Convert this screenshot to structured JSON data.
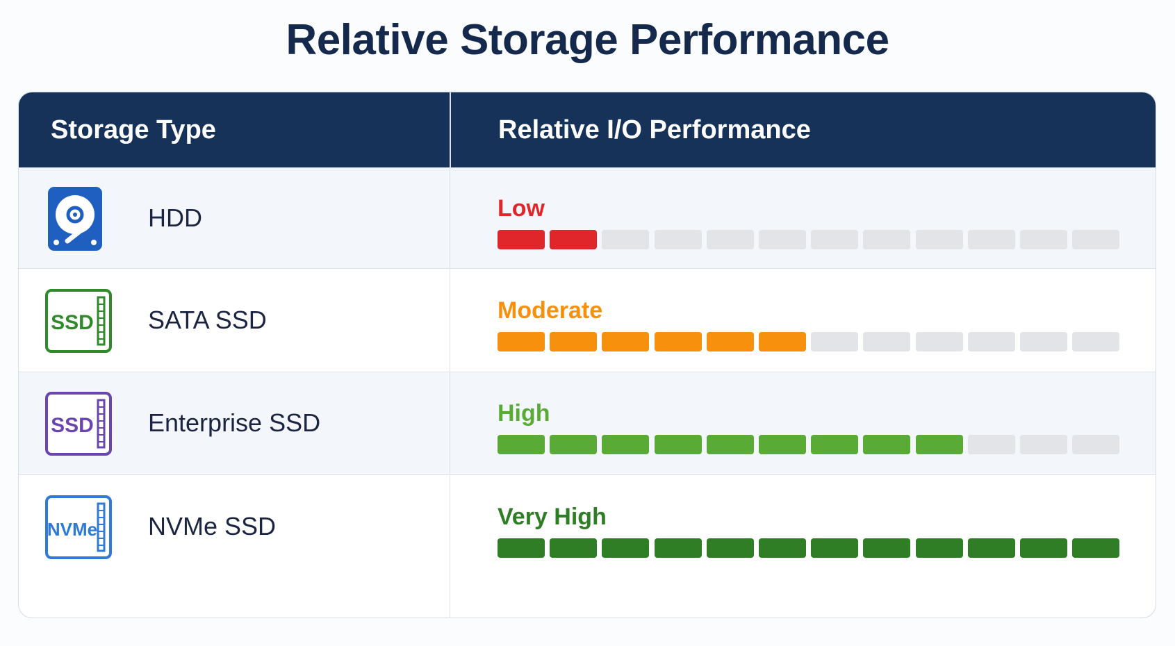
{
  "chart_data": {
    "type": "table",
    "title": "Relative Storage Performance",
    "columns": [
      "Storage Type",
      "Relative I/O Performance"
    ],
    "max_segments": 12,
    "inactive_color": "#e2e4e8",
    "rows": [
      {
        "type": "HDD",
        "level": "Low",
        "segments": 2,
        "color": "#e0262a",
        "icon": "hdd-icon",
        "icon_text": "",
        "icon_color": "#1f5fbf",
        "bg": "#f3f6fb"
      },
      {
        "type": "SATA SSD",
        "level": "Moderate",
        "segments": 6,
        "color": "#f7900c",
        "icon": "sata-ssd-icon",
        "icon_text": "SSD",
        "icon_color": "#2f8a2a",
        "bg": "#ffffff"
      },
      {
        "type": "Enterprise SSD",
        "level": "High",
        "segments": 9,
        "color": "#5aaa36",
        "icon": "enterprise-ssd-icon",
        "icon_text": "SSD",
        "icon_color": "#6a45b0",
        "bg": "#f3f6fb"
      },
      {
        "type": "NVMe SSD",
        "level": "Very High",
        "segments": 12,
        "color": "#2f7d24",
        "icon": "nvme-ssd-icon",
        "icon_text": "NVMe",
        "icon_color": "#2f7ad6",
        "bg": "#ffffff"
      }
    ]
  }
}
